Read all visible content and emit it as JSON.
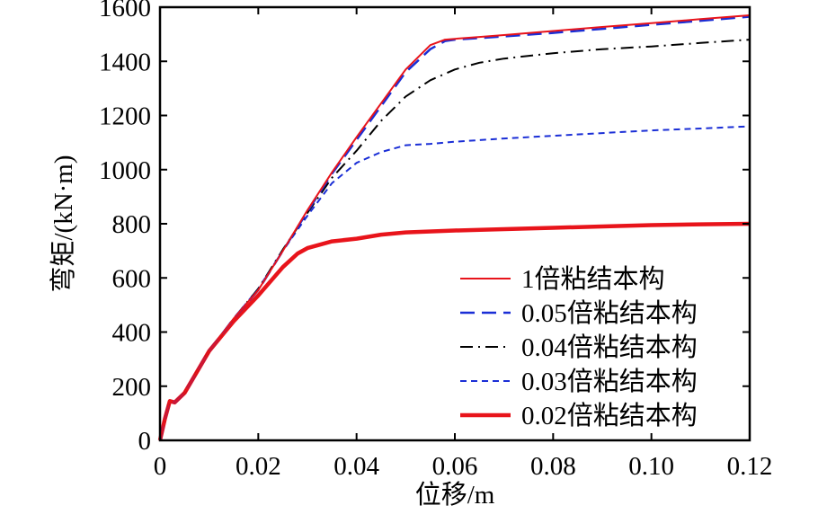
{
  "chart_data": {
    "type": "line",
    "title": "",
    "xlabel": "位移/m",
    "ylabel": "弯矩/(kN·m)",
    "xlim": [
      0,
      0.12
    ],
    "ylim": [
      0,
      1600
    ],
    "xticks": [
      0,
      0.02,
      0.04,
      0.06,
      0.08,
      0.1,
      0.12
    ],
    "xtick_labels": [
      "0",
      "0.02",
      "0.04",
      "0.06",
      "0.08",
      "0.10",
      "0.12"
    ],
    "yticks": [
      0,
      200,
      400,
      600,
      800,
      1000,
      1200,
      1400,
      1600
    ],
    "ytick_labels": [
      "0",
      "200",
      "400",
      "600",
      "800",
      "1000",
      "1200",
      "1400",
      "1600"
    ],
    "grid": false,
    "legend_position": "bottom-right",
    "series": [
      {
        "name": "1倍粘结本构",
        "color": "#e8141b",
        "style": "solid",
        "x": [
          0,
          0.001,
          0.002,
          0.003,
          0.005,
          0.01,
          0.015,
          0.02,
          0.025,
          0.03,
          0.035,
          0.04,
          0.045,
          0.05,
          0.055,
          0.058,
          0.06,
          0.065,
          0.07,
          0.08,
          0.09,
          0.1,
          0.11,
          0.12
        ],
        "y": [
          0,
          80,
          145,
          140,
          175,
          330,
          450,
          555,
          700,
          850,
          990,
          1120,
          1245,
          1370,
          1460,
          1480,
          1483,
          1490,
          1497,
          1512,
          1527,
          1541,
          1556,
          1570
        ]
      },
      {
        "name": "0.05倍粘结本构",
        "color": "#1a2ed6",
        "style": "dash",
        "x": [
          0,
          0.001,
          0.002,
          0.003,
          0.005,
          0.01,
          0.015,
          0.02,
          0.025,
          0.03,
          0.035,
          0.04,
          0.045,
          0.05,
          0.055,
          0.058,
          0.06,
          0.07,
          0.08,
          0.09,
          0.1,
          0.11,
          0.12
        ],
        "y": [
          0,
          80,
          145,
          140,
          175,
          330,
          450,
          555,
          700,
          845,
          985,
          1110,
          1235,
          1360,
          1445,
          1475,
          1480,
          1492,
          1505,
          1520,
          1535,
          1550,
          1565
        ]
      },
      {
        "name": "0.04倍粘结本构",
        "color": "#000000",
        "style": "dashdot",
        "x": [
          0,
          0.001,
          0.002,
          0.003,
          0.005,
          0.01,
          0.015,
          0.02,
          0.025,
          0.03,
          0.035,
          0.04,
          0.045,
          0.05,
          0.055,
          0.06,
          0.065,
          0.07,
          0.08,
          0.09,
          0.1,
          0.11,
          0.12
        ],
        "y": [
          0,
          80,
          145,
          140,
          175,
          330,
          450,
          560,
          705,
          840,
          970,
          1070,
          1180,
          1270,
          1330,
          1370,
          1395,
          1410,
          1430,
          1445,
          1455,
          1468,
          1480
        ]
      },
      {
        "name": "0.03倍粘结本构",
        "color": "#1a2ed6",
        "style": "shortdash",
        "x": [
          0,
          0.001,
          0.002,
          0.003,
          0.005,
          0.01,
          0.015,
          0.02,
          0.025,
          0.03,
          0.035,
          0.04,
          0.045,
          0.05,
          0.055,
          0.06,
          0.07,
          0.08,
          0.09,
          0.1,
          0.11,
          0.12
        ],
        "y": [
          0,
          80,
          145,
          140,
          175,
          330,
          450,
          560,
          700,
          830,
          950,
          1025,
          1065,
          1090,
          1095,
          1103,
          1115,
          1125,
          1135,
          1145,
          1152,
          1160
        ]
      },
      {
        "name": "0.02倍粘结本构",
        "color": "#e8141b",
        "style": "thick",
        "x": [
          0,
          0.001,
          0.002,
          0.003,
          0.005,
          0.01,
          0.015,
          0.02,
          0.025,
          0.028,
          0.03,
          0.035,
          0.04,
          0.045,
          0.05,
          0.06,
          0.07,
          0.08,
          0.09,
          0.1,
          0.11,
          0.12
        ],
        "y": [
          0,
          80,
          145,
          140,
          175,
          330,
          440,
          535,
          640,
          690,
          710,
          735,
          745,
          760,
          768,
          775,
          780,
          785,
          790,
          795,
          798,
          800
        ]
      }
    ]
  }
}
